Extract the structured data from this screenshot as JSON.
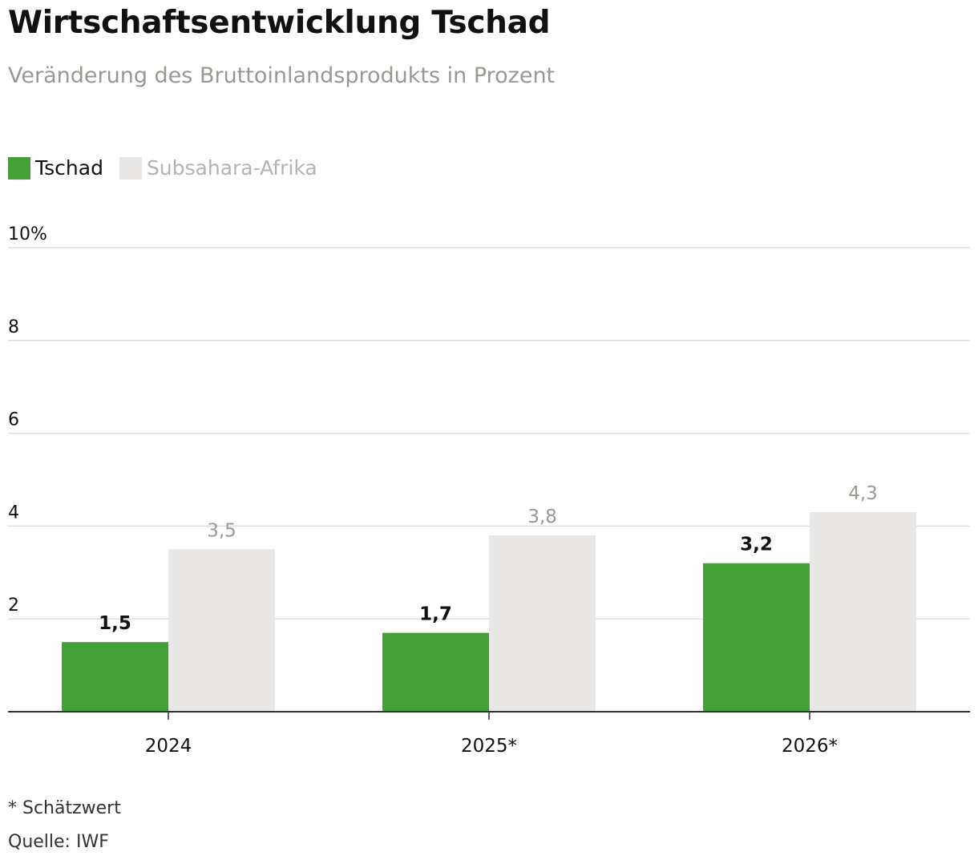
{
  "chart_data": {
    "type": "bar",
    "title": "Wirtschaftsentwicklung Tschad",
    "subtitle": "Veränderung des Bruttoinlandsprodukts in Prozent",
    "categories": [
      "2024",
      "2025*",
      "2026*"
    ],
    "series": [
      {
        "name": "Tschad",
        "values": [
          1.5,
          1.7,
          3.2
        ],
        "labels": [
          "1,5",
          "1,7",
          "3,2"
        ],
        "color": "#43a036"
      },
      {
        "name": "Subsahara-Afrika",
        "values": [
          3.5,
          3.8,
          4.3
        ],
        "labels": [
          "3,5",
          "3,8",
          "4,3"
        ],
        "color": "#e9e8e6"
      }
    ],
    "y_ticks": [
      {
        "value": 10,
        "label": "10%"
      },
      {
        "value": 8,
        "label": "8"
      },
      {
        "value": 6,
        "label": "6"
      },
      {
        "value": 4,
        "label": "4"
      },
      {
        "value": 2,
        "label": "2"
      }
    ],
    "ylim": [
      0,
      10
    ],
    "grid": true,
    "legend_position": "top-left"
  },
  "footnote": "* Schätzwert",
  "source": "Quelle: IWF",
  "colors": {
    "tschad": "#43a036",
    "subsahara": "#e9e8e6",
    "grid": "#dddddd",
    "axis": "#333333",
    "subsahara_label": "#9a9891"
  }
}
